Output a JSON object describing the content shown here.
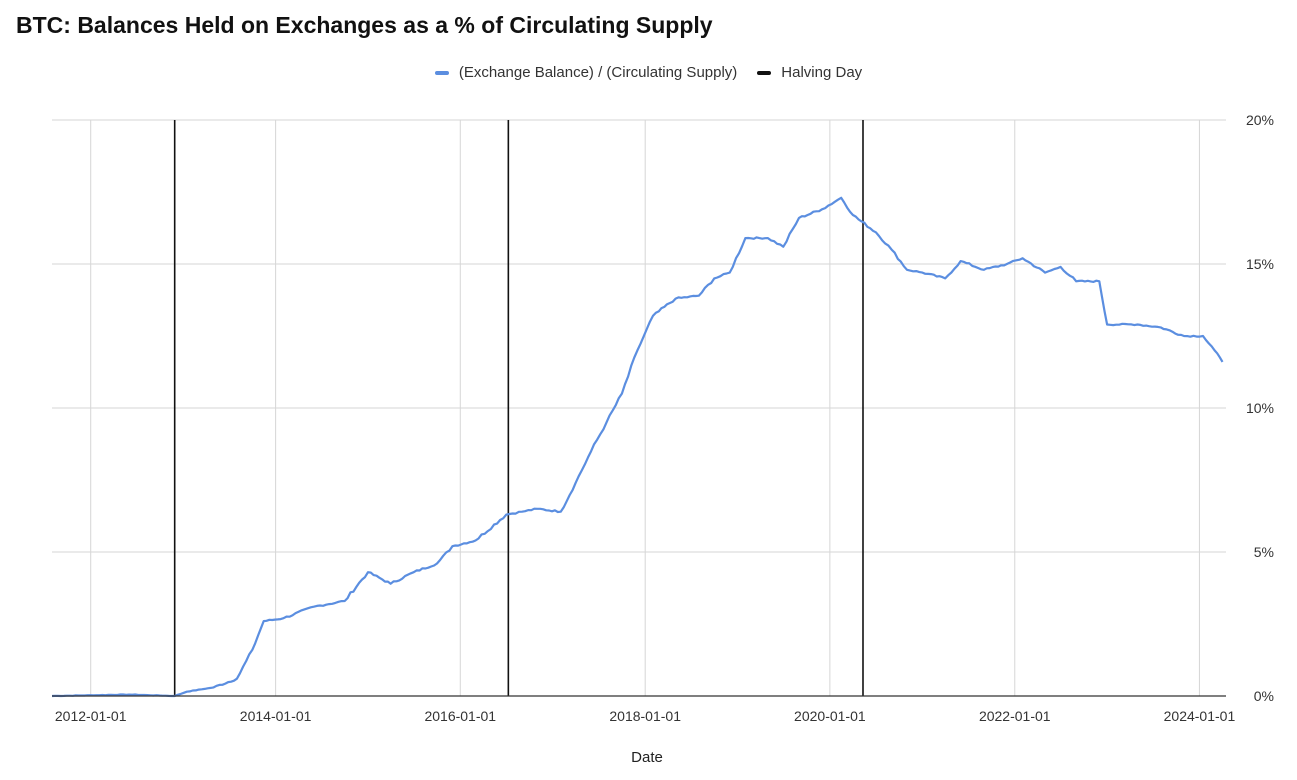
{
  "chart_data": {
    "type": "line",
    "title": "BTC: Balances Held on Exchanges as a % of Circulating Supply",
    "xlabel": "Date",
    "ylabel": "",
    "x_ticks": [
      "2012-01-01",
      "2014-01-01",
      "2016-01-01",
      "2018-01-01",
      "2020-01-01",
      "2022-01-01",
      "2024-01-01"
    ],
    "y_ticks": [
      "0%",
      "5%",
      "10%",
      "15%",
      "20%"
    ],
    "ylim": [
      0,
      20
    ],
    "xlim": [
      "2011-08-01",
      "2024-04-15"
    ],
    "grid": true,
    "legend_position": "top-center",
    "series": [
      {
        "name": "(Exchange Balance) / (Circulating Supply)",
        "color": "#5b8ee0",
        "points": [
          [
            "2011-08-01",
            0.0
          ],
          [
            "2012-06-01",
            0.05
          ],
          [
            "2012-11-28",
            0.0
          ],
          [
            "2013-01-15",
            0.15
          ],
          [
            "2013-05-01",
            0.3
          ],
          [
            "2013-08-01",
            0.6
          ],
          [
            "2013-10-01",
            1.6
          ],
          [
            "2013-11-15",
            2.6
          ],
          [
            "2014-02-01",
            2.7
          ],
          [
            "2014-06-01",
            3.1
          ],
          [
            "2014-10-01",
            3.3
          ],
          [
            "2015-01-01",
            4.3
          ],
          [
            "2015-04-01",
            3.9
          ],
          [
            "2015-07-01",
            4.3
          ],
          [
            "2015-10-01",
            4.6
          ],
          [
            "2015-12-01",
            5.2
          ],
          [
            "2016-03-01",
            5.4
          ],
          [
            "2016-07-01",
            6.3
          ],
          [
            "2016-09-01",
            6.4
          ],
          [
            "2016-11-01",
            6.5
          ],
          [
            "2017-02-01",
            6.4
          ],
          [
            "2017-04-01",
            7.4
          ],
          [
            "2017-06-01",
            8.5
          ],
          [
            "2017-08-01",
            9.5
          ],
          [
            "2017-10-01",
            10.5
          ],
          [
            "2017-12-01",
            12.0
          ],
          [
            "2018-02-01",
            13.2
          ],
          [
            "2018-05-01",
            13.8
          ],
          [
            "2018-08-01",
            13.9
          ],
          [
            "2018-10-01",
            14.5
          ],
          [
            "2018-12-01",
            14.7
          ],
          [
            "2019-02-01",
            15.9
          ],
          [
            "2019-05-01",
            15.9
          ],
          [
            "2019-07-01",
            15.6
          ],
          [
            "2019-09-01",
            16.6
          ],
          [
            "2019-12-01",
            16.9
          ],
          [
            "2020-02-15",
            17.3
          ],
          [
            "2020-04-01",
            16.7
          ],
          [
            "2020-07-01",
            16.1
          ],
          [
            "2020-09-01",
            15.5
          ],
          [
            "2020-11-01",
            14.8
          ],
          [
            "2021-01-01",
            14.7
          ],
          [
            "2021-04-01",
            14.5
          ],
          [
            "2021-06-01",
            15.1
          ],
          [
            "2021-09-01",
            14.8
          ],
          [
            "2021-12-01",
            15.0
          ],
          [
            "2022-02-01",
            15.2
          ],
          [
            "2022-05-01",
            14.7
          ],
          [
            "2022-07-01",
            14.9
          ],
          [
            "2022-09-01",
            14.4
          ],
          [
            "2022-12-01",
            14.4
          ],
          [
            "2023-01-01",
            12.9
          ],
          [
            "2023-05-01",
            12.9
          ],
          [
            "2023-08-01",
            12.8
          ],
          [
            "2023-11-01",
            12.5
          ],
          [
            "2024-01-15",
            12.5
          ],
          [
            "2024-03-01",
            12.0
          ],
          [
            "2024-04-01",
            11.6
          ]
        ]
      }
    ],
    "halving_series": {
      "name": "Halving Day",
      "color": "#111111",
      "dates": [
        "2012-11-28",
        "2016-07-09",
        "2020-05-11"
      ]
    }
  }
}
